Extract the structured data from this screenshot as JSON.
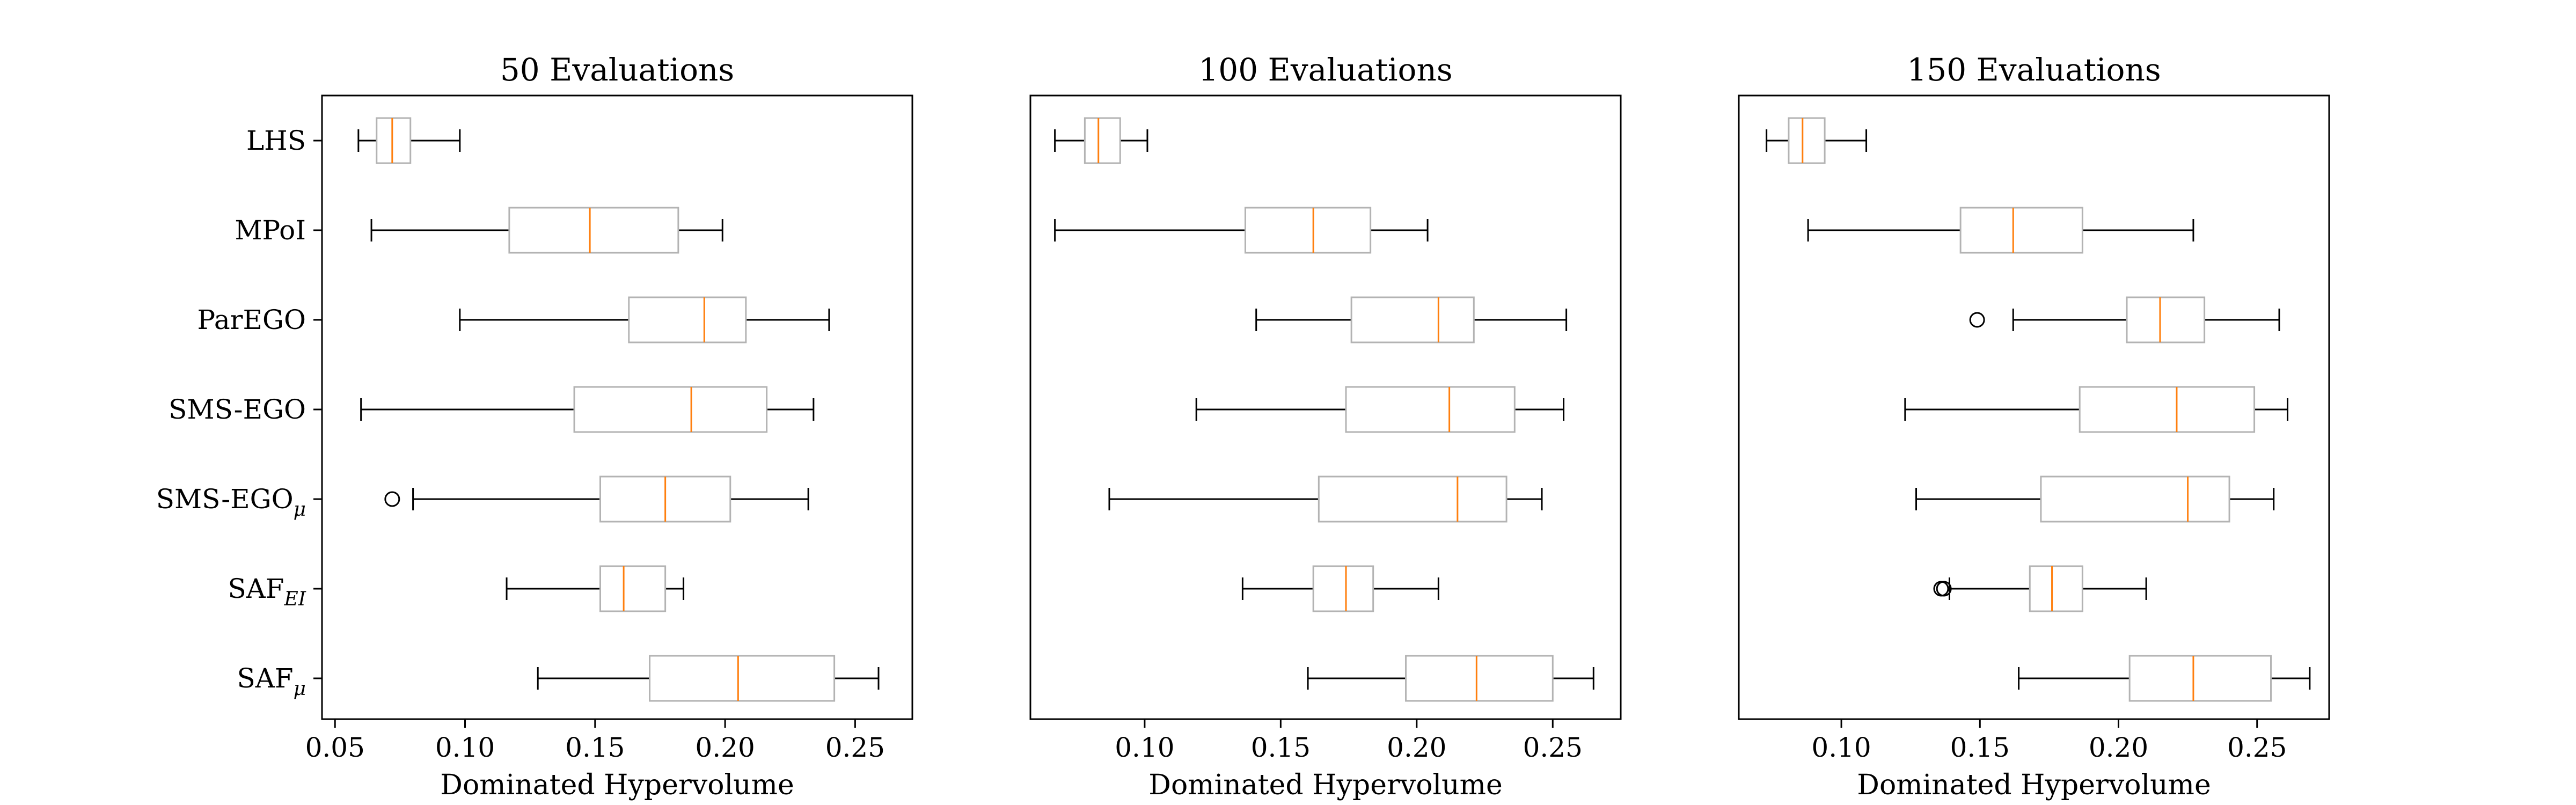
{
  "chart_data": [
    {
      "type": "boxplot",
      "orientation": "horizontal",
      "title": "50 Evaluations",
      "xlabel": "Dominated Hypervolume",
      "xlim": [
        0.045,
        0.272
      ],
      "xticks": [
        0.05,
        0.1,
        0.15,
        0.2,
        0.25
      ],
      "xtick_labels": [
        "0.05",
        "0.10",
        "0.15",
        "0.20",
        "0.25"
      ],
      "show_categories": true,
      "categories": [
        {
          "name": "LHS",
          "sub": ""
        },
        {
          "name": "MPoI",
          "sub": ""
        },
        {
          "name": "ParEGO",
          "sub": ""
        },
        {
          "name": "SMS-EGO",
          "sub": ""
        },
        {
          "name": "SMS-EGO",
          "sub": "μ"
        },
        {
          "name": "SAF",
          "sub": "EI"
        },
        {
          "name": "SAF",
          "sub": "μ"
        }
      ],
      "boxes": [
        {
          "whislo": 0.059,
          "q1": 0.066,
          "med": 0.072,
          "q3": 0.079,
          "whishi": 0.098,
          "fliers": []
        },
        {
          "whislo": 0.064,
          "q1": 0.117,
          "med": 0.148,
          "q3": 0.182,
          "whishi": 0.199,
          "fliers": []
        },
        {
          "whislo": 0.098,
          "q1": 0.163,
          "med": 0.192,
          "q3": 0.208,
          "whishi": 0.24,
          "fliers": []
        },
        {
          "whislo": 0.06,
          "q1": 0.142,
          "med": 0.187,
          "q3": 0.216,
          "whishi": 0.234,
          "fliers": []
        },
        {
          "whislo": 0.08,
          "q1": 0.152,
          "med": 0.177,
          "q3": 0.202,
          "whishi": 0.232,
          "fliers": [
            0.072
          ]
        },
        {
          "whislo": 0.116,
          "q1": 0.152,
          "med": 0.161,
          "q3": 0.177,
          "whishi": 0.184,
          "fliers": []
        },
        {
          "whislo": 0.128,
          "q1": 0.171,
          "med": 0.205,
          "q3": 0.242,
          "whishi": 0.259,
          "fliers": []
        }
      ]
    },
    {
      "type": "boxplot",
      "orientation": "horizontal",
      "title": "100 Evaluations",
      "xlabel": "Dominated Hypervolume",
      "xlim": [
        0.058,
        0.275
      ],
      "xticks": [
        0.1,
        0.15,
        0.2,
        0.25
      ],
      "xtick_labels": [
        "0.10",
        "0.15",
        "0.20",
        "0.25"
      ],
      "show_categories": false,
      "boxes": [
        {
          "whislo": 0.067,
          "q1": 0.078,
          "med": 0.083,
          "q3": 0.091,
          "whishi": 0.101,
          "fliers": []
        },
        {
          "whislo": 0.067,
          "q1": 0.137,
          "med": 0.162,
          "q3": 0.183,
          "whishi": 0.204,
          "fliers": []
        },
        {
          "whislo": 0.141,
          "q1": 0.176,
          "med": 0.208,
          "q3": 0.221,
          "whishi": 0.255,
          "fliers": []
        },
        {
          "whislo": 0.119,
          "q1": 0.174,
          "med": 0.212,
          "q3": 0.236,
          "whishi": 0.254,
          "fliers": []
        },
        {
          "whislo": 0.087,
          "q1": 0.164,
          "med": 0.215,
          "q3": 0.233,
          "whishi": 0.246,
          "fliers": []
        },
        {
          "whislo": 0.136,
          "q1": 0.162,
          "med": 0.174,
          "q3": 0.184,
          "whishi": 0.208,
          "fliers": []
        },
        {
          "whislo": 0.16,
          "q1": 0.196,
          "med": 0.222,
          "q3": 0.25,
          "whishi": 0.265,
          "fliers": []
        }
      ]
    },
    {
      "type": "boxplot",
      "orientation": "horizontal",
      "title": "150 Evaluations",
      "xlabel": "Dominated Hypervolume",
      "xlim": [
        0.063,
        0.276
      ],
      "xticks": [
        0.1,
        0.15,
        0.2,
        0.25
      ],
      "xtick_labels": [
        "0.10",
        "0.15",
        "0.20",
        "0.25"
      ],
      "show_categories": false,
      "boxes": [
        {
          "whislo": 0.073,
          "q1": 0.081,
          "med": 0.086,
          "q3": 0.094,
          "whishi": 0.109,
          "fliers": []
        },
        {
          "whislo": 0.088,
          "q1": 0.143,
          "med": 0.162,
          "q3": 0.187,
          "whishi": 0.227,
          "fliers": []
        },
        {
          "whislo": 0.162,
          "q1": 0.203,
          "med": 0.215,
          "q3": 0.231,
          "whishi": 0.258,
          "fliers": [
            0.149
          ]
        },
        {
          "whislo": 0.123,
          "q1": 0.186,
          "med": 0.221,
          "q3": 0.249,
          "whishi": 0.261,
          "fliers": []
        },
        {
          "whislo": 0.127,
          "q1": 0.172,
          "med": 0.225,
          "q3": 0.24,
          "whishi": 0.256,
          "fliers": []
        },
        {
          "whislo": 0.139,
          "q1": 0.168,
          "med": 0.176,
          "q3": 0.187,
          "whishi": 0.21,
          "fliers": [
            0.136,
            0.137
          ]
        },
        {
          "whislo": 0.164,
          "q1": 0.204,
          "med": 0.227,
          "q3": 0.255,
          "whishi": 0.269,
          "fliers": []
        }
      ]
    }
  ],
  "colors": {
    "box": "#b3b3b3",
    "median": "#ff7f0e",
    "whisker": "#000000",
    "axes": "#000000"
  }
}
